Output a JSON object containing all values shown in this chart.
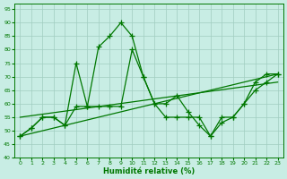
{
  "x": [
    0,
    1,
    2,
    3,
    4,
    5,
    6,
    7,
    8,
    9,
    10,
    11,
    12,
    13,
    14,
    15,
    16,
    17,
    18,
    19,
    20,
    21,
    22,
    23
  ],
  "line1": [
    48,
    51,
    55,
    55,
    52,
    75,
    59,
    81,
    85,
    90,
    85,
    70,
    60,
    60,
    63,
    57,
    52,
    48,
    55,
    55,
    60,
    68,
    71,
    71
  ],
  "line2": [
    48,
    51,
    55,
    55,
    52,
    59,
    59,
    59,
    59,
    59,
    80,
    70,
    60,
    55,
    55,
    55,
    55,
    48,
    53,
    55,
    60,
    65,
    68,
    71
  ],
  "trend1_x": [
    0,
    23
  ],
  "trend1_y": [
    48,
    71
  ],
  "trend2_x": [
    0,
    23
  ],
  "trend2_y": [
    55,
    68
  ],
  "line_color": "#007700",
  "bg_color": "#c8ede4",
  "grid_color": "#a0ccc0",
  "xlabel": "Humidité relative (%)",
  "ylim": [
    40,
    97
  ],
  "xlim": [
    -0.5,
    23.5
  ],
  "yticks": [
    40,
    45,
    50,
    55,
    60,
    65,
    70,
    75,
    80,
    85,
    90,
    95
  ],
  "xticks": [
    0,
    1,
    2,
    3,
    4,
    5,
    6,
    7,
    8,
    9,
    10,
    11,
    12,
    13,
    14,
    15,
    16,
    17,
    18,
    19,
    20,
    21,
    22,
    23
  ]
}
